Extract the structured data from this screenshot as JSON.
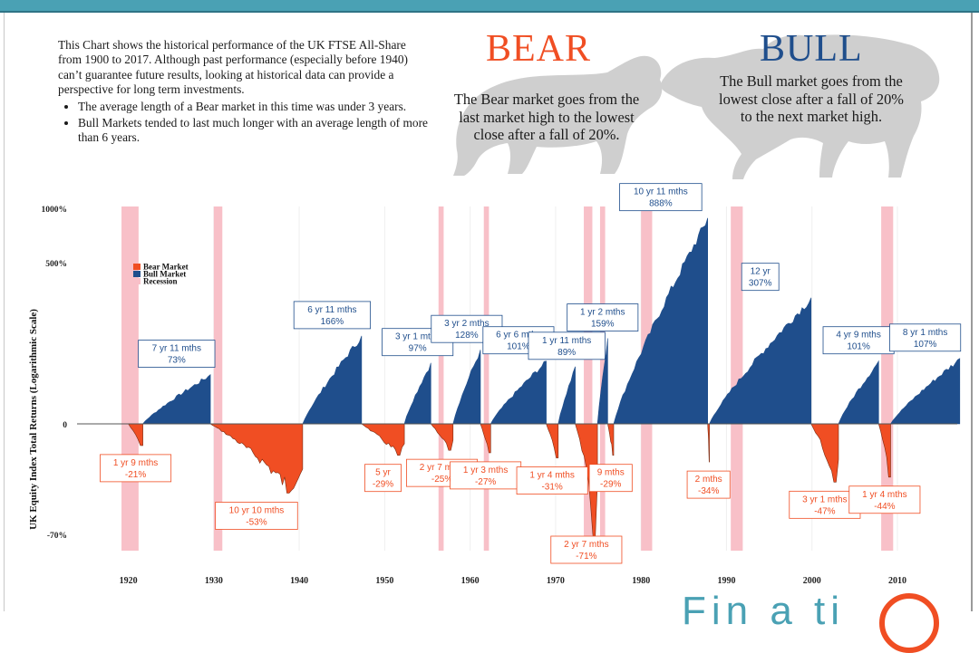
{
  "intro": {
    "paragraph": "This Chart shows the historical performance of the UK FTSE All-Share from 1900 to 2017.  Although past performance (especially before 1940) can’t guarantee future results, looking at historical data can provide a perspective for long term investments.",
    "bullets": [
      "The average length of a Bear market in this time was under 3 years.",
      "Bull Markets tended to last much longer with an average length of more than 6 years."
    ]
  },
  "bear": {
    "title": "BEAR",
    "description": "The Bear market goes from the last market high to the lowest close after a fall of 20%."
  },
  "bull": {
    "title": "BULL",
    "description": "The Bull market goes from the lowest close after a fall of 20% to the next market high."
  },
  "logo": {
    "text": "Fin a ti"
  },
  "colors": {
    "bear": "#f04e23",
    "bull": "#1f4e8c",
    "recession": "#f8c0c8",
    "label_bull": "#1f4e8c",
    "label_bear": "#f04e23"
  },
  "chart_data": {
    "type": "area",
    "ylabel": "UK Equity Index Total Returns (Logarithmic Scale)",
    "yscale": "log",
    "yticks": [
      "1000%",
      "500%",
      "0",
      "-70%"
    ],
    "xticks": [
      1920,
      1930,
      1940,
      1950,
      1960,
      1970,
      1980,
      1990,
      2000,
      2010
    ],
    "xlim": [
      1914,
      2017
    ],
    "legend": {
      "placement": "top-left",
      "entries": [
        "Bear Market",
        "Bull Market",
        "Recession"
      ]
    },
    "recessions": [
      [
        1919.2,
        1921.2
      ],
      [
        1930.0,
        1931.0
      ],
      [
        1956.3,
        1956.9
      ],
      [
        1961.6,
        1962.2
      ],
      [
        1973.3,
        1974.3
      ],
      [
        1975.2,
        1975.8
      ],
      [
        1980.0,
        1981.3
      ],
      [
        1990.5,
        1991.9
      ],
      [
        2008.1,
        2009.5
      ]
    ],
    "markets": [
      {
        "type": "bear",
        "start": 1920.0,
        "end": 1921.7,
        "return": -21,
        "label": "1 yr 9 mths",
        "value_label": "-21%"
      },
      {
        "type": "bull",
        "start": 1921.7,
        "end": 1929.6,
        "return": 73,
        "label": "7 yr 11 mths",
        "value_label": "73%"
      },
      {
        "type": "bear",
        "start": 1929.6,
        "end": 1940.4,
        "return": -53,
        "label": "10 yr 10 mths",
        "value_label": "-53%"
      },
      {
        "type": "bull",
        "start": 1940.4,
        "end": 1947.3,
        "return": 166,
        "label": "6 yr 11 mths",
        "value_label": "166%"
      },
      {
        "type": "bear",
        "start": 1947.3,
        "end": 1952.3,
        "return": -29,
        "label": "5 yr",
        "value_label": "-29%"
      },
      {
        "type": "bull",
        "start": 1952.3,
        "end": 1955.4,
        "return": 97,
        "label": "3 yr 1 mths",
        "value_label": "97%"
      },
      {
        "type": "bear",
        "start": 1955.4,
        "end": 1958.0,
        "return": -25,
        "label": "2 yr 7 mths",
        "value_label": "-25%"
      },
      {
        "type": "bull",
        "start": 1958.0,
        "end": 1961.2,
        "return": 128,
        "label": "3 yr 2 mths",
        "value_label": "128%"
      },
      {
        "type": "bear",
        "start": 1961.2,
        "end": 1962.4,
        "return": -27,
        "label": "1 yr 3 mths",
        "value_label": "-27%"
      },
      {
        "type": "bull",
        "start": 1962.4,
        "end": 1968.9,
        "return": 101,
        "label": "6 yr 6 mths",
        "value_label": "101%"
      },
      {
        "type": "bear",
        "start": 1968.9,
        "end": 1970.3,
        "return": -31,
        "label": "1 yr 4 mths",
        "value_label": "-31%"
      },
      {
        "type": "bull",
        "start": 1970.3,
        "end": 1972.3,
        "return": 89,
        "label": "1 yr 11 mths",
        "value_label": "89%"
      },
      {
        "type": "bear",
        "start": 1972.3,
        "end": 1974.9,
        "return": -71,
        "label": "2 yr 7 mths",
        "value_label": "-71%"
      },
      {
        "type": "bull",
        "start": 1974.9,
        "end": 1976.1,
        "return": 159,
        "label": "1 yr 2 mths",
        "value_label": "159%"
      },
      {
        "type": "bear",
        "start": 1976.1,
        "end": 1976.8,
        "return": -29,
        "label": "9 mths",
        "value_label": "-29%"
      },
      {
        "type": "bull",
        "start": 1976.8,
        "end": 1987.8,
        "return": 888,
        "label": "10 yr 11 mths",
        "value_label": "888%"
      },
      {
        "type": "bear",
        "start": 1987.8,
        "end": 1988.0,
        "return": -34,
        "label": "2 mths",
        "value_label": "-34%"
      },
      {
        "type": "bull",
        "start": 1988.0,
        "end": 1999.9,
        "return": 307,
        "label": "12 yr",
        "value_label": "307%"
      },
      {
        "type": "bear",
        "start": 1999.9,
        "end": 2003.1,
        "return": -47,
        "label": "3 yr 1 mths",
        "value_label": "-47%"
      },
      {
        "type": "bull",
        "start": 2003.1,
        "end": 2007.8,
        "return": 101,
        "label": "4 yr 9 mths",
        "value_label": "101%"
      },
      {
        "type": "bear",
        "start": 2007.8,
        "end": 2009.2,
        "return": -44,
        "label": "1 yr 4 mths",
        "value_label": "-44%"
      },
      {
        "type": "bull",
        "start": 2009.2,
        "end": 2017.3,
        "return": 107,
        "label": "8 yr 1 mths",
        "value_label": "107%"
      }
    ]
  }
}
